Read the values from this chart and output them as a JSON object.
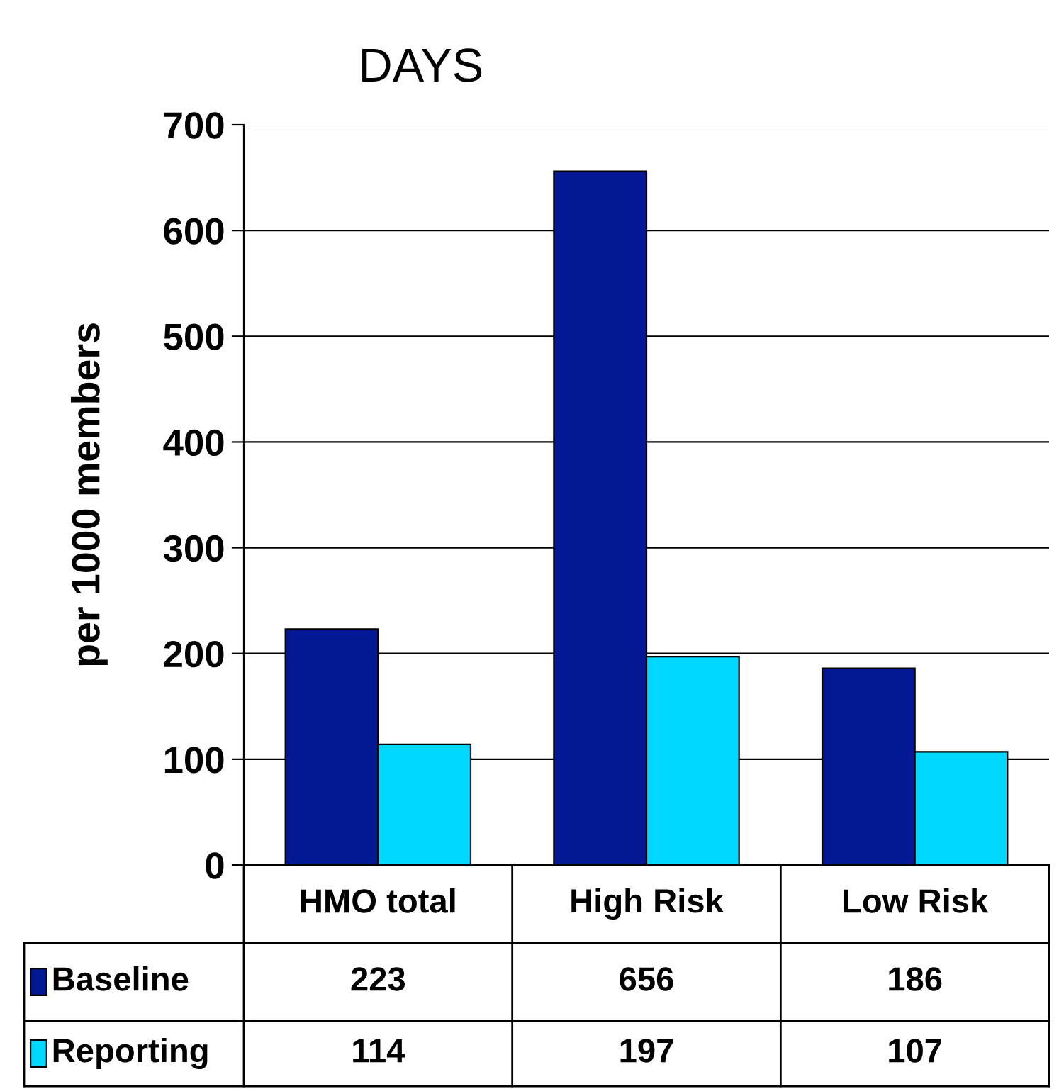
{
  "chart_data": {
    "type": "bar",
    "title": "DAYS",
    "ylabel": "per 1000 members",
    "categories": [
      "HMO total",
      "High Risk",
      "Low Risk"
    ],
    "series": [
      {
        "name": "Baseline",
        "color": "#041893",
        "values": [
          223,
          656,
          186
        ]
      },
      {
        "name": "Reporting",
        "color": "#00d8ff",
        "values": [
          114,
          197,
          107
        ]
      }
    ],
    "ylim": [
      0,
      700
    ],
    "yticks": [
      0,
      100,
      200,
      300,
      400,
      500,
      600,
      700
    ],
    "grid": "y",
    "data_labels": true,
    "legend": "bottom left"
  }
}
